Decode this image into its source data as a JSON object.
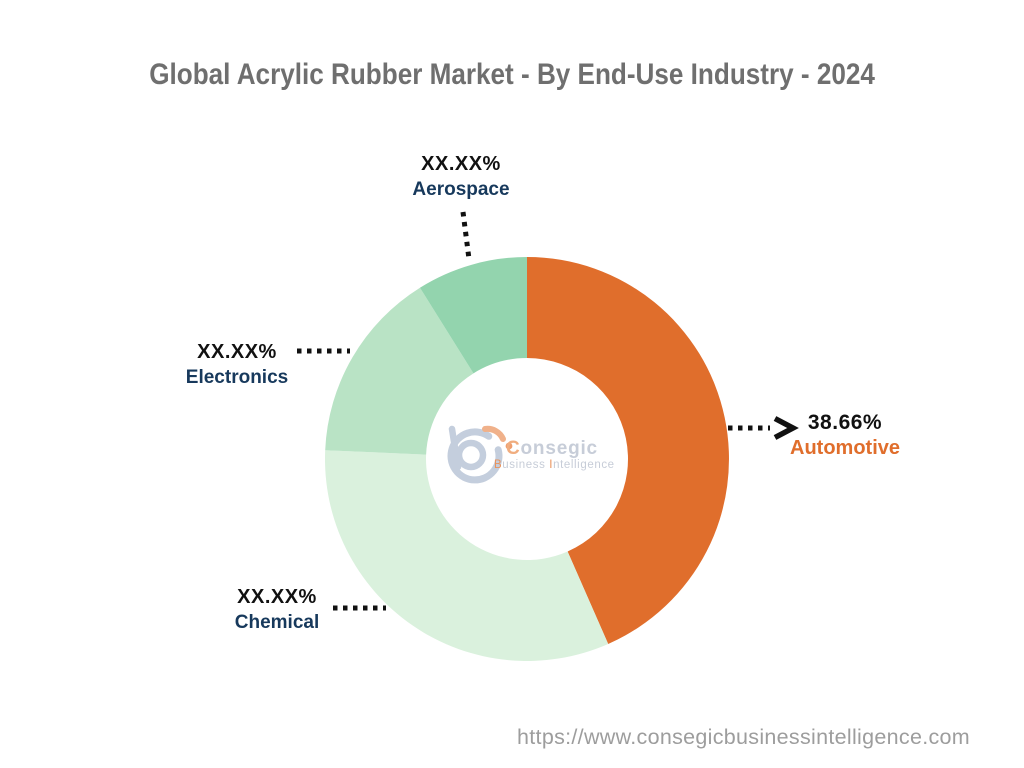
{
  "page": {
    "title": "Global Acrylic Rubber Market - By End-Use Industry - 2024",
    "footer_url": "https://www.consegicbusinessintelligence.com",
    "background_color": "#ffffff",
    "title_color": "#6f6f6f",
    "footer_color": "#9d9d9d"
  },
  "chart_data": {
    "type": "pie",
    "subtype": "donut",
    "title": "Global Acrylic Rubber Market - By End-Use Industry - 2024",
    "year": "2024",
    "inner_radius_ratio": 0.5,
    "start_angle_deg_clockwise_from_top": 0,
    "legend": "none (direct callout labels with dotted leader lines)",
    "value_text_color": "#111111",
    "leader_color": "#111111",
    "segments": [
      {
        "label": "Automotive",
        "value_label": "38.66%",
        "value_pct": 38.66,
        "drawn_start_deg": 0,
        "drawn_end_deg": 156.3,
        "color": "#E06E2C",
        "label_color": "#E06E2C"
      },
      {
        "label": "Chemical",
        "value_label": "XX.XX%",
        "value_pct": null,
        "drawn_start_deg": 156.3,
        "drawn_end_deg": 272.5,
        "color": "#DAF1DD",
        "label_color": "#17395C"
      },
      {
        "label": "Electronics",
        "value_label": "XX.XX%",
        "value_pct": null,
        "drawn_start_deg": 272.5,
        "drawn_end_deg": 328,
        "color": "#B9E3C5",
        "label_color": "#17395C"
      },
      {
        "label": "Aerospace",
        "value_label": "XX.XX%",
        "value_pct": null,
        "drawn_start_deg": 328,
        "drawn_end_deg": 360,
        "color": "#93D4AE",
        "label_color": "#17395C"
      }
    ]
  },
  "logo": {
    "brand_initial": "C",
    "brand_rest": "onsegic",
    "sub_word1_initial": "B",
    "sub_word1_rest": "usiness",
    "sub_word2_initial": "I",
    "sub_word2_rest": "ntelligence",
    "colors": {
      "mark_blue": "#c4cedd",
      "accent_orange_light": "#f0b18a",
      "accent_orange": "#e9935c",
      "text_gray": "#c7cdd8"
    }
  }
}
